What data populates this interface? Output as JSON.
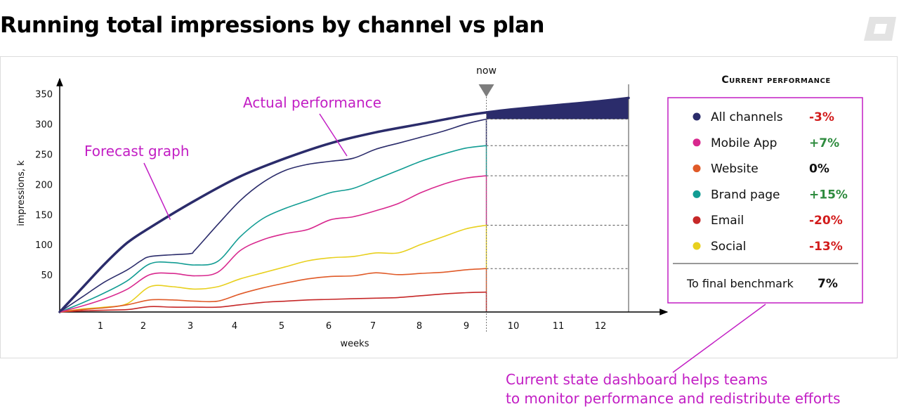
{
  "title": "Running total impressions by channel vs plan",
  "chart_data": {
    "type": "line",
    "title": "Running total impressions by channel vs plan",
    "xlabel": "weeks",
    "ylabel": "impressions, k",
    "xlim": [
      0,
      12.6
    ],
    "ylim": [
      0,
      380
    ],
    "x_ticks": [
      1,
      2,
      3,
      4,
      5,
      6,
      7,
      8,
      9,
      10,
      11,
      12
    ],
    "y_ticks": [
      50,
      100,
      150,
      200,
      250,
      300,
      350
    ],
    "now_week": 9.45,
    "now_label": "now",
    "plan_end_week": 12.6,
    "forecast": {
      "label": "Forecast graph",
      "color": "#2b2c6b",
      "points": [
        [
          0,
          0
        ],
        [
          0.5,
          40
        ],
        [
          1,
          80
        ],
        [
          1.5,
          115
        ],
        [
          2,
          140
        ],
        [
          3,
          185
        ],
        [
          4,
          225
        ],
        [
          5,
          255
        ],
        [
          6,
          280
        ],
        [
          7,
          298
        ],
        [
          8,
          312
        ],
        [
          9,
          326
        ],
        [
          9.45,
          331
        ],
        [
          10,
          336
        ],
        [
          11,
          343
        ],
        [
          12,
          350
        ],
        [
          12.6,
          355
        ]
      ]
    },
    "actual_label": "Actual performance",
    "series": [
      {
        "name": "All channels",
        "color": "#2b2c6b",
        "change": "-3%",
        "change_color": "#d21c1c",
        "points": [
          [
            0,
            0
          ],
          [
            0.5,
            25
          ],
          [
            1,
            50
          ],
          [
            1.5,
            70
          ],
          [
            1.8,
            85
          ],
          [
            2,
            92
          ],
          [
            2.5,
            95
          ],
          [
            2.9,
            97
          ],
          [
            3,
            103
          ],
          [
            3.5,
            145
          ],
          [
            4,
            185
          ],
          [
            4.5,
            215
          ],
          [
            5,
            235
          ],
          [
            5.5,
            245
          ],
          [
            6,
            250
          ],
          [
            6.5,
            255
          ],
          [
            7,
            270
          ],
          [
            7.5,
            280
          ],
          [
            8,
            290
          ],
          [
            8.5,
            300
          ],
          [
            9,
            312
          ],
          [
            9.45,
            320
          ]
        ]
      },
      {
        "name": "Mobile App",
        "color": "#d8288e",
        "change": "+7%",
        "change_color": "#2e8b3e",
        "points": [
          [
            0,
            0
          ],
          [
            0.5,
            10
          ],
          [
            1,
            22
          ],
          [
            1.5,
            38
          ],
          [
            2,
            62
          ],
          [
            2.5,
            64
          ],
          [
            3,
            60
          ],
          [
            3.5,
            66
          ],
          [
            4,
            102
          ],
          [
            4.5,
            120
          ],
          [
            5,
            130
          ],
          [
            5.5,
            137
          ],
          [
            6,
            153
          ],
          [
            6.5,
            158
          ],
          [
            7,
            168
          ],
          [
            7.5,
            180
          ],
          [
            8,
            198
          ],
          [
            8.5,
            212
          ],
          [
            9,
            222
          ],
          [
            9.45,
            226
          ]
        ]
      },
      {
        "name": "Website",
        "color": "#e05a28",
        "change": "0%",
        "change_color": "#111111",
        "points": [
          [
            0,
            0
          ],
          [
            0.5,
            4
          ],
          [
            1,
            7
          ],
          [
            1.5,
            12
          ],
          [
            2,
            20
          ],
          [
            2.5,
            20
          ],
          [
            3,
            18
          ],
          [
            3.5,
            18
          ],
          [
            4,
            30
          ],
          [
            4.5,
            40
          ],
          [
            5,
            48
          ],
          [
            5.5,
            55
          ],
          [
            6,
            59
          ],
          [
            6.5,
            60
          ],
          [
            7,
            65
          ],
          [
            7.5,
            62
          ],
          [
            8,
            64
          ],
          [
            8.5,
            66
          ],
          [
            9,
            70
          ],
          [
            9.45,
            72
          ]
        ]
      },
      {
        "name": "Brand page",
        "color": "#119c93",
        "change": "+15%",
        "change_color": "#2e8b3e",
        "points": [
          [
            0,
            0
          ],
          [
            0.5,
            15
          ],
          [
            1,
            32
          ],
          [
            1.5,
            52
          ],
          [
            2,
            80
          ],
          [
            2.5,
            82
          ],
          [
            3,
            78
          ],
          [
            3.5,
            84
          ],
          [
            4,
            125
          ],
          [
            4.5,
            155
          ],
          [
            5,
            172
          ],
          [
            5.5,
            185
          ],
          [
            6,
            198
          ],
          [
            6.5,
            205
          ],
          [
            7,
            220
          ],
          [
            7.5,
            235
          ],
          [
            8,
            250
          ],
          [
            8.5,
            262
          ],
          [
            9,
            272
          ],
          [
            9.45,
            276
          ]
        ]
      },
      {
        "name": "Email",
        "color": "#c62828",
        "change": "-20%",
        "change_color": "#d21c1c",
        "points": [
          [
            0,
            0
          ],
          [
            0.5,
            2
          ],
          [
            1,
            3
          ],
          [
            1.5,
            4
          ],
          [
            2,
            9
          ],
          [
            2.5,
            8
          ],
          [
            3,
            8
          ],
          [
            3.5,
            8
          ],
          [
            4,
            12
          ],
          [
            4.5,
            16
          ],
          [
            5,
            18
          ],
          [
            5.5,
            20
          ],
          [
            6,
            21
          ],
          [
            6.5,
            22
          ],
          [
            7,
            23
          ],
          [
            7.5,
            24
          ],
          [
            8,
            27
          ],
          [
            8.5,
            30
          ],
          [
            9,
            32
          ],
          [
            9.45,
            33
          ]
        ]
      },
      {
        "name": "Social",
        "color": "#e8d01e",
        "change": "-13%",
        "change_color": "#d21c1c",
        "points": [
          [
            0,
            0
          ],
          [
            0.5,
            5
          ],
          [
            1,
            8
          ],
          [
            1.5,
            14
          ],
          [
            2,
            42
          ],
          [
            2.5,
            42
          ],
          [
            3,
            38
          ],
          [
            3.5,
            42
          ],
          [
            4,
            55
          ],
          [
            4.5,
            65
          ],
          [
            5,
            75
          ],
          [
            5.5,
            85
          ],
          [
            6,
            90
          ],
          [
            6.5,
            92
          ],
          [
            7,
            98
          ],
          [
            7.5,
            98
          ],
          [
            8,
            112
          ],
          [
            8.5,
            125
          ],
          [
            9,
            138
          ],
          [
            9.45,
            144
          ]
        ]
      }
    ],
    "benchmark_lines": [
      320,
      276,
      226,
      144,
      72
    ]
  },
  "panel": {
    "heading": "Current performance",
    "footer_label": "To final benchmark",
    "footer_value": "7%"
  },
  "colors": {
    "accent": "#c21ec4",
    "navy": "#2b2c6b",
    "red": "#d21c1c",
    "green": "#2e8b3e"
  },
  "note": {
    "line1": "Current state dashboard helps teams",
    "line2": "to monitor performance and redistribute efforts"
  }
}
